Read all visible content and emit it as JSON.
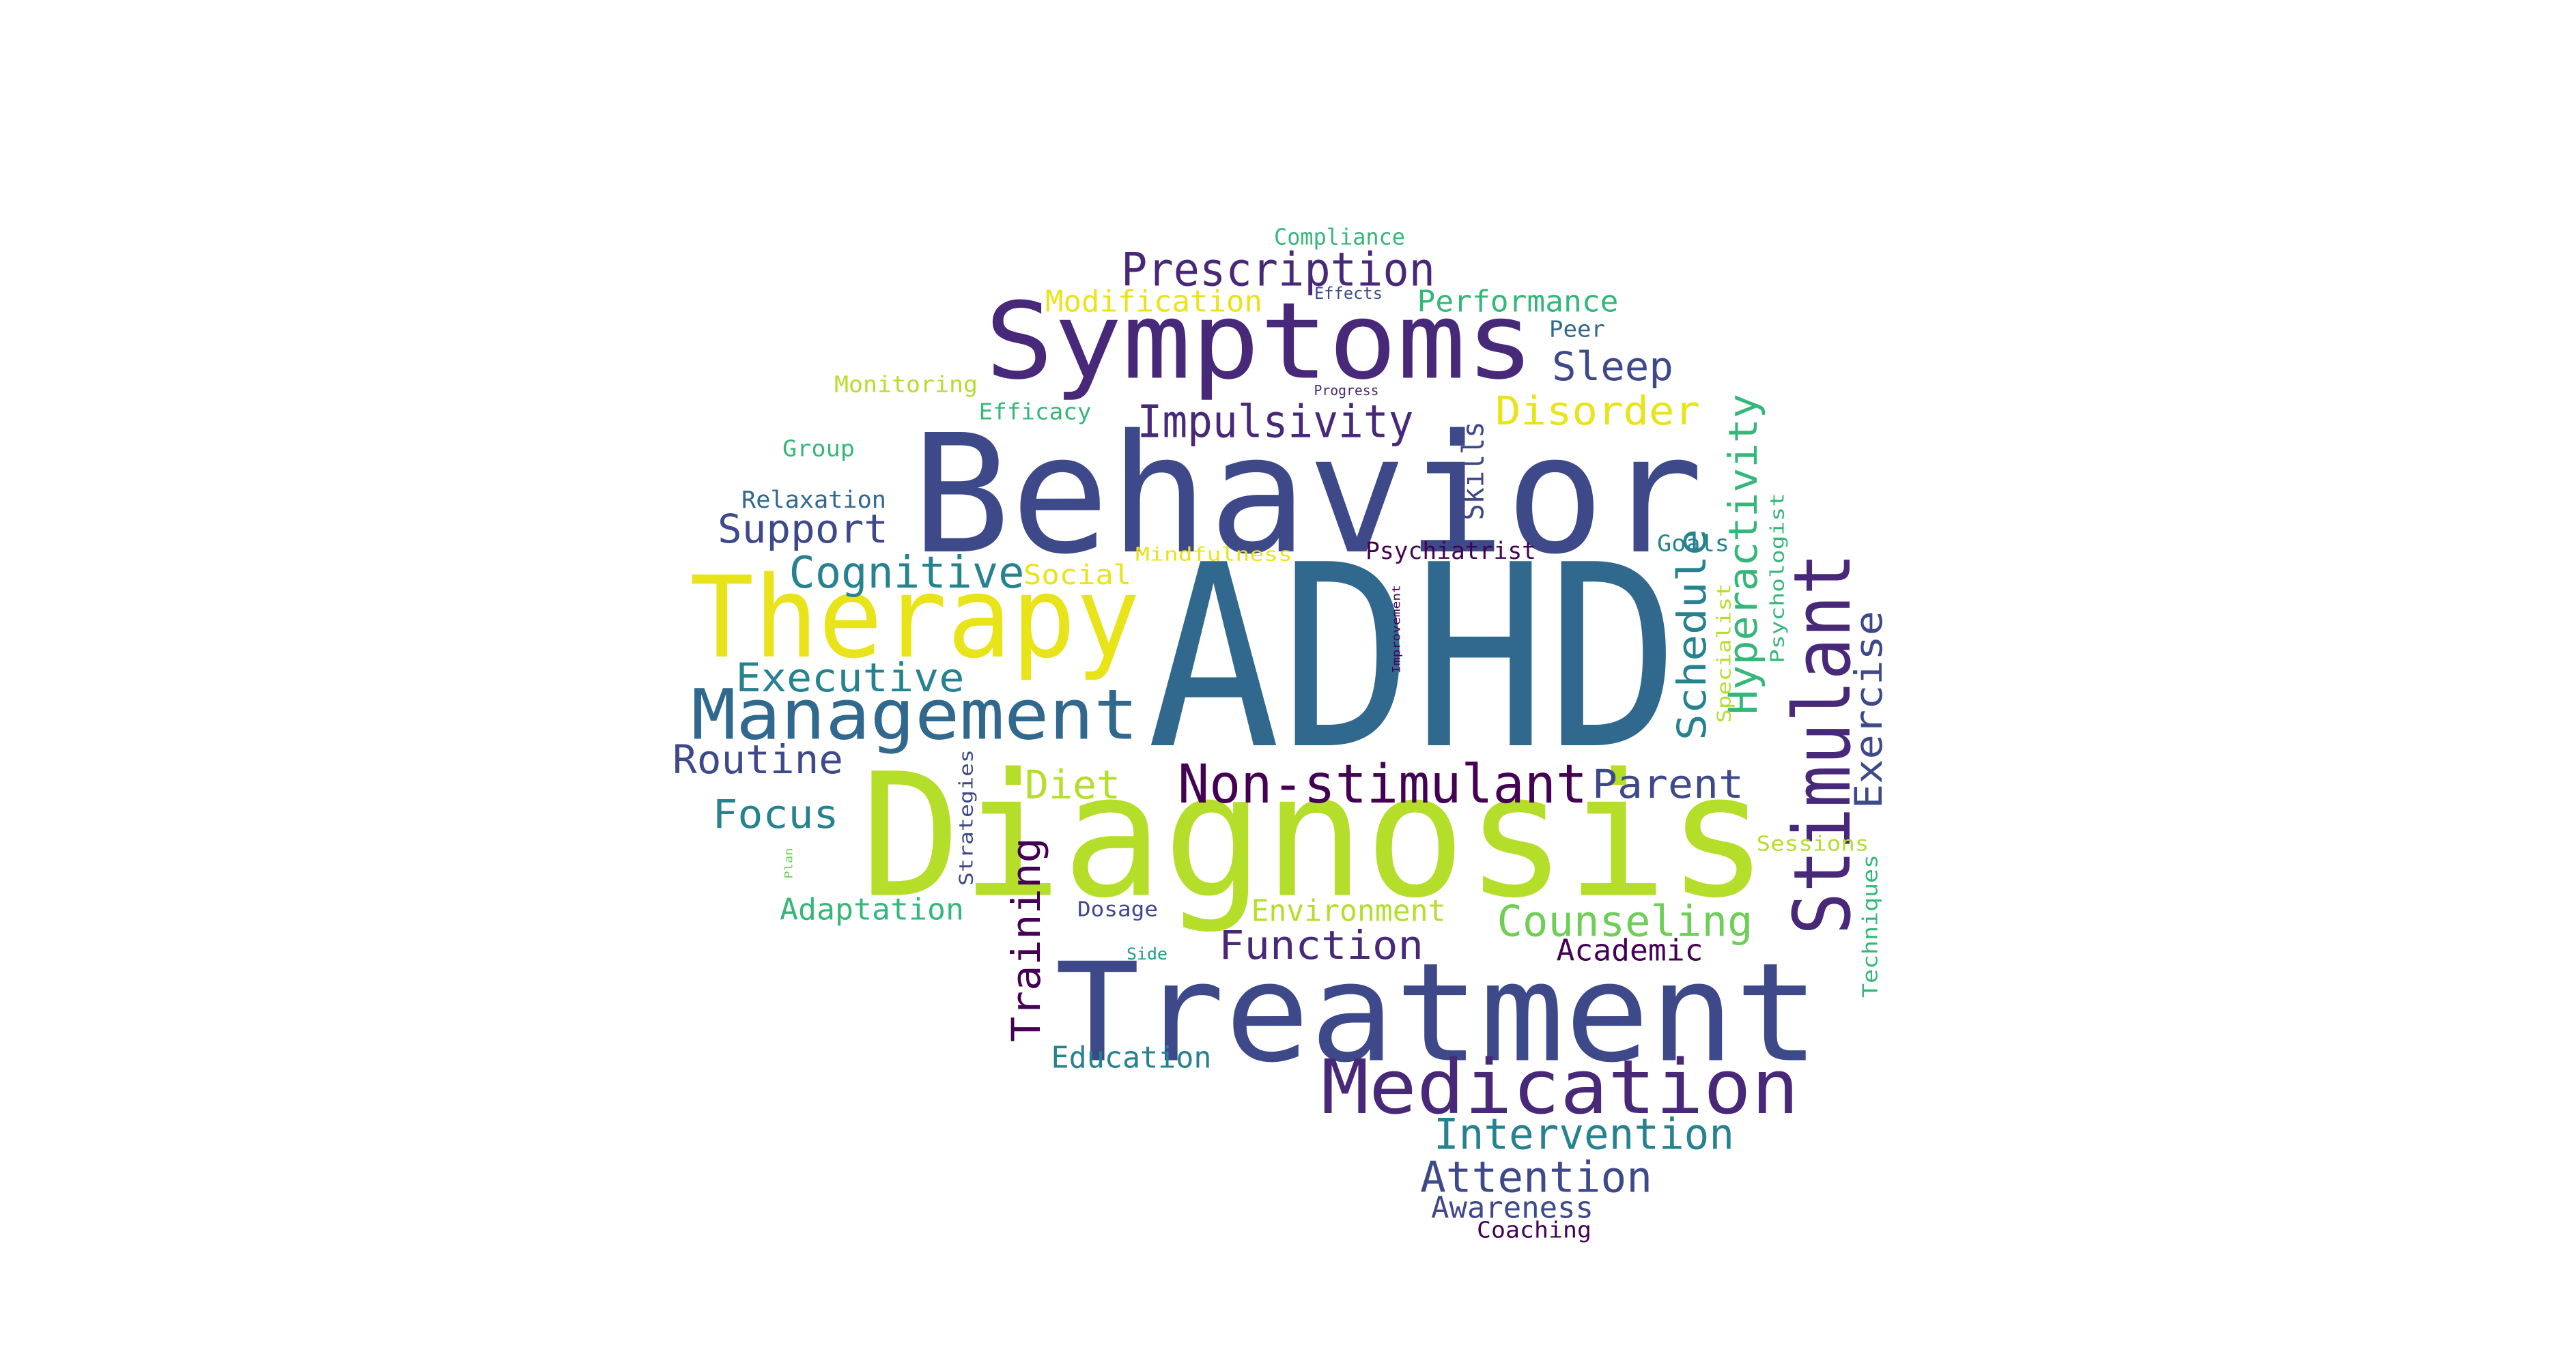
{
  "colors": {
    "dark_purple": "#440154",
    "purple": "#482878",
    "indigo": "#3e4989",
    "blue": "#31688e",
    "teal": "#26828e",
    "green_teal": "#1f9e89",
    "green": "#35b779",
    "light_green": "#6ece58",
    "lime": "#b5de2b",
    "yellow": "#e8e419"
  },
  "words": [
    {
      "text": "ADHD",
      "color": "#31688e"
    },
    {
      "text": "Behavior",
      "color": "#3e4989"
    },
    {
      "text": "Diagnosis",
      "color": "#b5de2b"
    },
    {
      "text": "Treatment",
      "color": "#3e4989"
    },
    {
      "text": "Symptoms",
      "color": "#482878"
    },
    {
      "text": "Therapy",
      "color": "#e8e419"
    },
    {
      "text": "Stimulant",
      "color": "#482878"
    },
    {
      "text": "Medication",
      "color": "#482878"
    },
    {
      "text": "Management",
      "color": "#31688e"
    },
    {
      "text": "Non-stimulant",
      "color": "#440154"
    },
    {
      "text": "Prescription",
      "color": "#482878"
    },
    {
      "text": "Impulsivity",
      "color": "#482878"
    },
    {
      "text": "Cognitive",
      "color": "#26828e"
    },
    {
      "text": "Hyperactivity",
      "color": "#35b779"
    },
    {
      "text": "Schedule",
      "color": "#26828e"
    },
    {
      "text": "Counseling",
      "color": "#6ece58"
    },
    {
      "text": "Intervention",
      "color": "#26828e"
    },
    {
      "text": "Attention",
      "color": "#3e4989"
    },
    {
      "text": "Exercise",
      "color": "#3e4989"
    },
    {
      "text": "Executive",
      "color": "#26828e"
    },
    {
      "text": "Disorder",
      "color": "#e8e419"
    },
    {
      "text": "Training",
      "color": "#440154"
    },
    {
      "text": "Function",
      "color": "#482878"
    },
    {
      "text": "Support",
      "color": "#3e4989"
    },
    {
      "text": "Routine",
      "color": "#3e4989"
    },
    {
      "text": "Parent",
      "color": "#3e4989"
    },
    {
      "text": "Sleep",
      "color": "#3e4989"
    },
    {
      "text": "Focus",
      "color": "#26828e"
    },
    {
      "text": "Diet",
      "color": "#b5de2b"
    },
    {
      "text": "Performance",
      "color": "#35b779"
    },
    {
      "text": "Modification",
      "color": "#e8e419"
    },
    {
      "text": "Environment",
      "color": "#b5de2b"
    },
    {
      "text": "Adaptation",
      "color": "#35b779"
    },
    {
      "text": "Education",
      "color": "#26828e"
    },
    {
      "text": "Academic",
      "color": "#440154"
    },
    {
      "text": "Awareness",
      "color": "#3e4989"
    },
    {
      "text": "Skills",
      "color": "#3e4989"
    },
    {
      "text": "Psychiatrist",
      "color": "#440154"
    },
    {
      "text": "Social",
      "color": "#e8e419"
    },
    {
      "text": "Relaxation",
      "color": "#31688e"
    },
    {
      "text": "Monitoring",
      "color": "#b5de2b"
    },
    {
      "text": "Compliance",
      "color": "#35b779"
    },
    {
      "text": "Efficacy",
      "color": "#35b779"
    },
    {
      "text": "Group",
      "color": "#35b779"
    },
    {
      "text": "Mindfulness",
      "color": "#e8e419"
    },
    {
      "text": "Goals",
      "color": "#26828e"
    },
    {
      "text": "Peer",
      "color": "#31688e"
    },
    {
      "text": "Coaching",
      "color": "#440154"
    },
    {
      "text": "Dosage",
      "color": "#3e4989"
    },
    {
      "text": "Sessions",
      "color": "#b5de2b"
    },
    {
      "text": "Techniques",
      "color": "#35b779"
    },
    {
      "text": "Strategies",
      "color": "#3e4989"
    },
    {
      "text": "Specialist",
      "color": "#b5de2b"
    },
    {
      "text": "Psychologist",
      "color": "#35b779"
    },
    {
      "text": "Effects",
      "color": "#3e4989"
    },
    {
      "text": "Progress",
      "color": "#482878"
    },
    {
      "text": "Side",
      "color": "#1f9e89"
    },
    {
      "text": "Improvement",
      "color": "#440154"
    },
    {
      "text": "Plan",
      "color": "#6ece58"
    }
  ]
}
